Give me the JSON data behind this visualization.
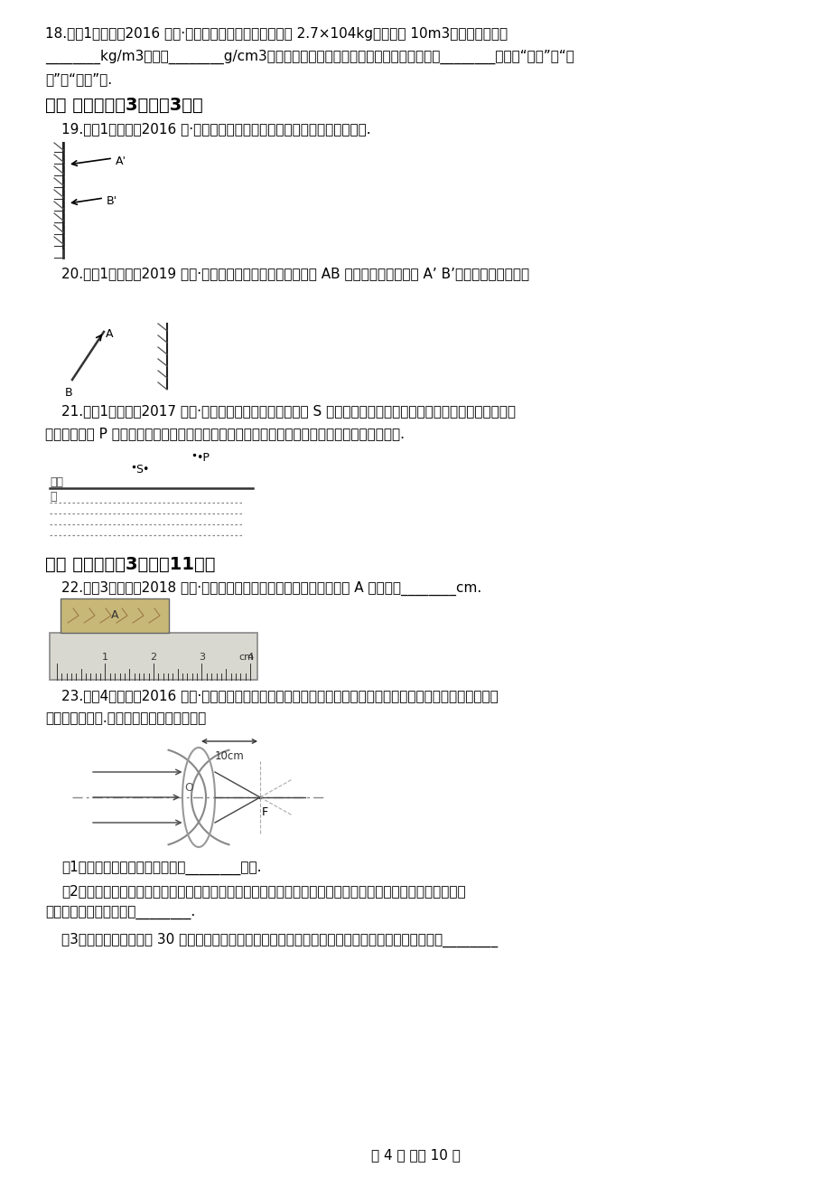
{
  "bg_color": "#ffffff",
  "body_fontsize": 11,
  "title_fontsize": 14,
  "q18_line1": "18.　（1分）　（2016 九下·道里开学考）一物体的质量是 2.7×104kg，体积为 10m3，　则其密度为",
  "q18_line2": "________kg/m3，　合________g/cm3，　若把该物体切去一半，则剩下部分的密度将________（选填“变大”、“变",
  "q18_line3": "小”或“不变”）.",
  "sec3_title": "三、 作图题（八3题；八3分）",
  "q19_text": "19.　（1分）　（2016 八·丰城月考）根据平面镜成像特点画出镜前的物体.",
  "q20_text": "20.　（1分）　（2019 八上·重庆期中）请你在图中画出物体 AB 在平面镜中所成的像 A’ B’（保留作图痕迹）。",
  "q21_text1": "21.　（1分）　（2017 八上·重庆期中）如图所示，发光点 S 发出一条射向水面的光线，在水面发生反射和折射，",
  "q21_text2": "发射光线经过 P 点，请在图中作出入射光线、反射光线及大致方向的折射光线（保留作图痕迹）.",
  "sec4_title": "四、 实验题（八3题；八11分）",
  "q22_text": "22.　（3分）　（2018 八上·黄梅月考）如图所示，用刻度尺测量物体 A 的长度是________cm.",
  "q23_text1": "23.　（4分）　（2016 八下·临泽期中）小明利用一未知焦距的凸透镜探究透镜的成像规律，进行了如下操作并",
  "q23_text2": "得到了相关结论.　请你将空缺部分补充完整",
  "q23_sub1": "（1）　实验用的凸透镜焦距约是________厘米.",
  "q23_sub2": "（2）　为了研究凸透镜的成像规律，先将蜡烛、凸透镜和光屏放到光具座上，然后调节它们的高度，使它们的",
  "q23_sub3": "中心与烛灯的中心大致在________.",
  "q23_sub4": "（3）　当烛灯离凸透镜 30 厘米时，光屏应在透镜另一侧移动，光屏在某一位置上会呈现一个清晰的________",
  "page_footer": "第 4 页 　共 10 页"
}
